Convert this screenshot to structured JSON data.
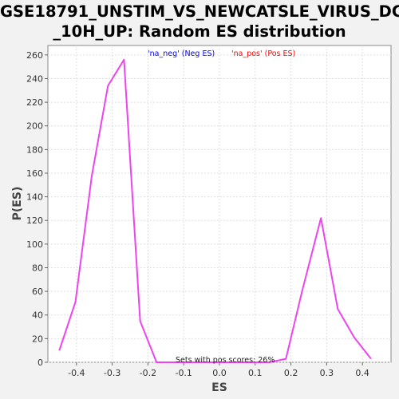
{
  "chart_data": {
    "type": "line",
    "title_line1": "GSE18791_UNSTIM_VS_NEWCATSLE_VIRUS_DC",
    "title_line2": "_10H_UP: Random ES distribution",
    "xlabel": "ES",
    "ylabel": "P(ES)",
    "xlim": [
      -0.48,
      0.48
    ],
    "ylim": [
      0,
      268
    ],
    "x_ticks": [
      -0.4,
      -0.3,
      -0.2,
      -0.1,
      0.0,
      0.1,
      0.2,
      0.3,
      0.4
    ],
    "x_tick_labels": [
      "-0.4",
      "-0.3",
      "-0.2",
      "-0.1",
      "0.0",
      "0.1",
      "0.2",
      "0.3",
      "0.4"
    ],
    "y_ticks": [
      0,
      20,
      40,
      60,
      80,
      100,
      120,
      140,
      160,
      180,
      200,
      220,
      240,
      260
    ],
    "y_tick_labels": [
      "0",
      "20",
      "40",
      "60",
      "80",
      "100",
      "120",
      "140",
      "160",
      "180",
      "200",
      "220",
      "240",
      "260"
    ],
    "grid": true,
    "legend": [
      {
        "label": "'na_neg' (Neg ES)",
        "color": "#0000ff"
      },
      {
        "label": "'na_pos' (Pos ES)",
        "color": "#ff0000"
      }
    ],
    "annotation": "Sets with pos scores: 26%",
    "series": [
      {
        "color": "#ee44ee",
        "x": [
          -0.448,
          -0.403,
          -0.357,
          -0.312,
          -0.267,
          -0.222,
          -0.176,
          -0.131,
          -0.086,
          -0.041,
          0.005,
          0.05,
          0.095,
          0.14,
          0.186,
          0.231,
          0.284,
          0.331,
          0.377,
          0.424
        ],
        "y": [
          10,
          51,
          158,
          234,
          256,
          35,
          0,
          0,
          0,
          0,
          0,
          0,
          0,
          0,
          3,
          60,
          122,
          45,
          21,
          3
        ]
      }
    ]
  }
}
